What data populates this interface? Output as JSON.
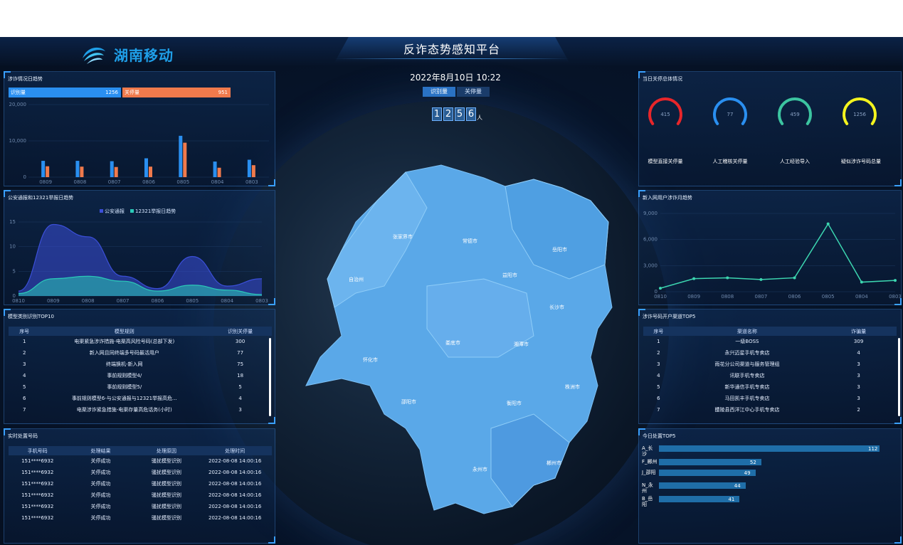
{
  "header": {
    "title": "反诈态势感知平台",
    "logo_text": "湖南移动",
    "logo_icon": "china-mobile-logo-icon"
  },
  "center": {
    "datetime": "2022年8月10日 10:22",
    "toggle": [
      "识别量",
      "关停量"
    ],
    "active_toggle": 0,
    "digits": [
      "1",
      "2",
      "5",
      "6"
    ],
    "unit": "人",
    "cities": [
      "张家界市",
      "常德市",
      "岳阳市",
      "自治州",
      "益阳市",
      "长沙市",
      "娄底市",
      "湘潭市",
      "怀化市",
      "株洲市",
      "邵阳市",
      "衡阳市",
      "永州市",
      "郴州市"
    ],
    "map_color": "#5aa8e8"
  },
  "panel_trend": {
    "title": "涉诈情况日趋势",
    "chip_identify_label": "识别量",
    "chip_identify_value": "1256",
    "chip_shutdown_label": "关停量",
    "chip_shutdown_value": "951"
  },
  "panel_police": {
    "title": "公安通报和12321举报日趋势",
    "legend": [
      "公安通报",
      "12321举报日趋势"
    ]
  },
  "panel_model": {
    "title": "模型类别识别TOP10",
    "columns": [
      "序号",
      "模型规则",
      "识别关停量"
    ],
    "rows": [
      [
        "1",
        "电渠紧急涉诈措施-电渠高风险号码(总部下发)",
        "300"
      ],
      [
        "2",
        "新入网且同终端多号码最活用户",
        "77"
      ],
      [
        "3",
        "终端换机-新入网",
        "75"
      ],
      [
        "4",
        "事前规则模型4/",
        "18"
      ],
      [
        "5",
        "事前规则模型5/",
        "5"
      ],
      [
        "6",
        "事前规则模型6-与公安通报与12321举报高危...",
        "4"
      ],
      [
        "7",
        "电渠涉诈紧急措施-电渠存量高危话务(小时)",
        "3"
      ]
    ]
  },
  "panel_realtime": {
    "title": "实时处置号码",
    "columns": [
      "手机号码",
      "处理结果",
      "处理原因",
      "处理时间"
    ],
    "rows": [
      [
        "151****6932",
        "关停成功",
        "骚扰模型识别",
        "2022-08-08 14:00:16"
      ],
      [
        "151****6932",
        "关停成功",
        "骚扰模型识别",
        "2022-08-08 14:00:16"
      ],
      [
        "151****6932",
        "关停成功",
        "骚扰模型识别",
        "2022-08-08 14:00:16"
      ],
      [
        "151****6932",
        "关停成功",
        "骚扰模型识别",
        "2022-08-08 14:00:16"
      ],
      [
        "151****6932",
        "关停成功",
        "骚扰模型识别",
        "2022-08-08 14:00:16"
      ],
      [
        "151****6932",
        "关停成功",
        "骚扰模型识别",
        "2022-08-08 14:00:16"
      ]
    ]
  },
  "panel_gauges": {
    "title": "当日关停总体情况",
    "gauges": [
      {
        "value": "415",
        "label": "模型直接关停量",
        "color": "#e8262a"
      },
      {
        "value": "77",
        "label": "人工稽核关停量",
        "color": "#2a8ff0"
      },
      {
        "value": "459",
        "label": "人工经验导入",
        "color": "#3cc4a0"
      },
      {
        "value": "1256",
        "label": "疑似涉诈号码总量",
        "color": "#f4f41e"
      }
    ]
  },
  "panel_newuser": {
    "title": "新入网用户涉诈月趋势"
  },
  "panel_channel": {
    "title": "涉诈号码开户渠道TOP5",
    "columns": [
      "序号",
      "渠道名称",
      "诈骗量"
    ],
    "rows": [
      [
        "1",
        "一级BOSS",
        "309"
      ],
      [
        "2",
        "永兴迈星手机专卖店",
        "4"
      ],
      [
        "3",
        "雨花分公司渠道与服务管理组",
        "3"
      ],
      [
        "4",
        "讯联手机专卖店",
        "3"
      ],
      [
        "5",
        "新华通信手机专卖店",
        "3"
      ],
      [
        "6",
        "马田凯丰手机专卖店",
        "3"
      ],
      [
        "7",
        "醴陵县西洋江中心手机专卖店",
        "2"
      ]
    ]
  },
  "panel_today": {
    "title": "今日处置TOP5",
    "items": [
      {
        "label": "A_长沙",
        "value": 112
      },
      {
        "label": "F_郴州",
        "value": 52
      },
      {
        "label": "J_邵阳",
        "value": 49
      },
      {
        "label": "N_永州",
        "value": 44
      },
      {
        "label": "B_岳阳",
        "value": 41
      }
    ]
  },
  "chart_data": [
    {
      "type": "bar",
      "categories": [
        "0809",
        "0808",
        "0807",
        "0806",
        "0805",
        "0804",
        "0803"
      ],
      "series": [
        {
          "name": "识别量",
          "values": [
            4500,
            4500,
            4400,
            5200,
            11400,
            4300,
            4800
          ],
          "color": "#2a8ff0"
        },
        {
          "name": "关停量",
          "values": [
            3000,
            2900,
            2800,
            2900,
            9500,
            2600,
            3300
          ],
          "color": "#f07a4c"
        }
      ],
      "yticks": [
        "0",
        "10,000",
        "20,000"
      ],
      "ylim": [
        0,
        20000
      ]
    },
    {
      "type": "area",
      "categories": [
        "0810",
        "0809",
        "0808",
        "0807",
        "0806",
        "0805",
        "0804",
        "0803"
      ],
      "series": [
        {
          "name": "公安通报",
          "values": [
            1,
            14.5,
            12,
            4,
            1.5,
            8,
            2,
            3.5
          ],
          "color": "#3b4fd8"
        },
        {
          "name": "12321举报日趋势",
          "values": [
            0.5,
            3.5,
            4,
            3,
            1,
            2.2,
            1.2,
            0.3
          ],
          "color": "#2bc9b8"
        }
      ],
      "yticks": [
        "0",
        "5",
        "10",
        "15"
      ],
      "ylim": [
        0,
        15
      ]
    },
    {
      "type": "line",
      "categories": [
        "0810",
        "0809",
        "0808",
        "0807",
        "0806",
        "0805",
        "0804",
        "0803"
      ],
      "series": [
        {
          "name": "新入网用户涉诈",
          "values": [
            400,
            1500,
            1600,
            1400,
            1600,
            7800,
            1100,
            1300
          ],
          "color": "#3cd6b0"
        }
      ],
      "yticks": [
        "0",
        "3,000",
        "6,000",
        "9,000"
      ],
      "ylim": [
        0,
        9000
      ]
    }
  ]
}
